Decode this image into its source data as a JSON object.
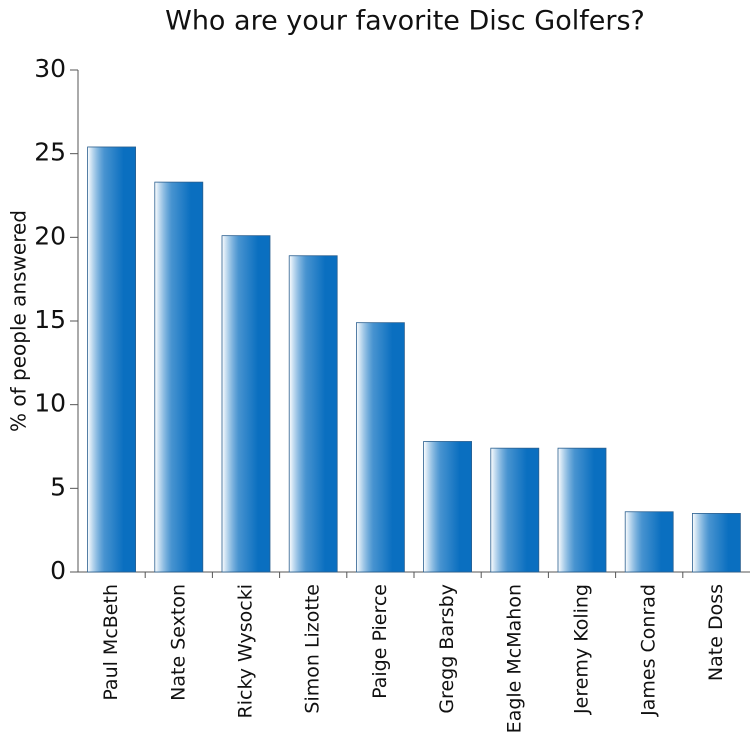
{
  "chart_data": {
    "type": "bar",
    "title": "Who are your favorite Disc Golfers?",
    "y_label": "% of people answered",
    "categories": [
      "Paul McBeth",
      "Nate Sexton",
      "Ricky Wysocki",
      "Simon Lizotte",
      "Paige Pierce",
      "Gregg Barsby",
      "Eagle McMahon",
      "Jeremy Koling",
      "James Conrad",
      "Nate Doss"
    ],
    "values": [
      25.4,
      23.3,
      20.1,
      18.9,
      14.9,
      7.8,
      7.4,
      7.4,
      3.6,
      3.5
    ],
    "color": "#0a6fc0",
    "ylim": [
      0,
      30
    ],
    "yticks": [
      0,
      5,
      10,
      15,
      20,
      25,
      30
    ],
    "grid": false
  }
}
